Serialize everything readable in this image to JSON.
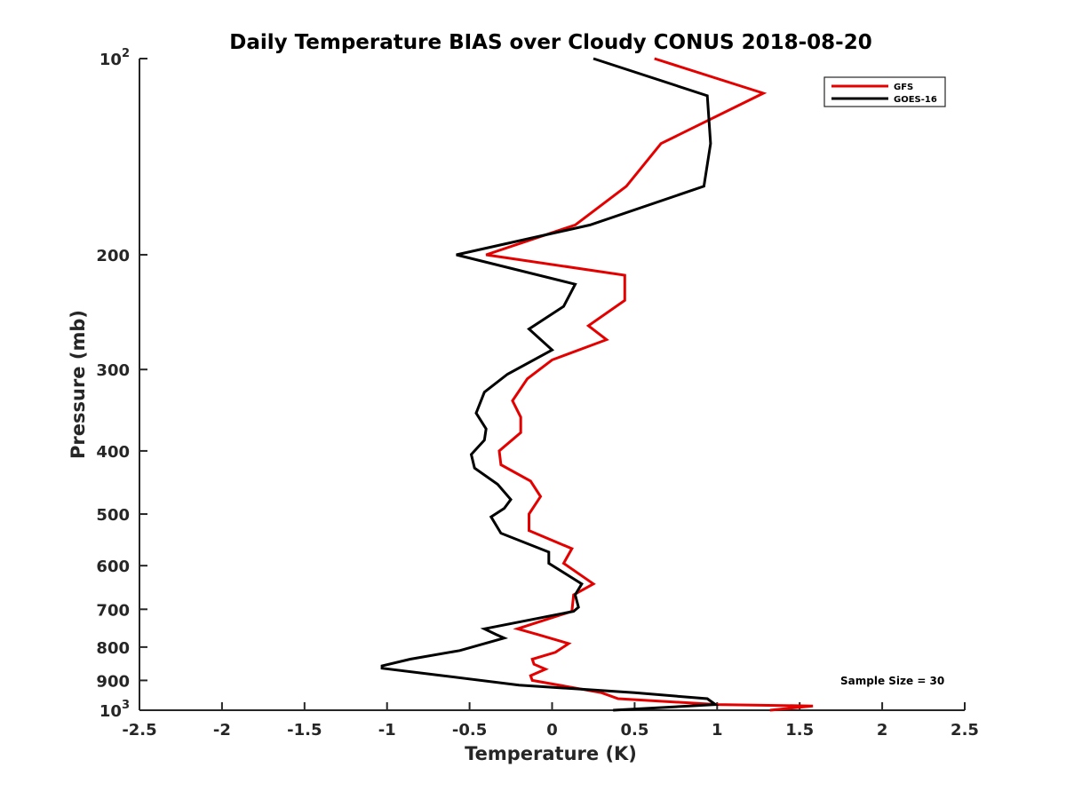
{
  "chart_data": {
    "type": "line",
    "title": "Daily Temperature BIAS over Cloudy CONUS 2018-08-20",
    "xlabel": "Temperature (K)",
    "ylabel": "Pressure (mb)",
    "xlim": [
      -2.5,
      2.5
    ],
    "ylim": [
      100,
      1000
    ],
    "yscale": "log",
    "y_reversed": true,
    "grid": false,
    "legend_position": "top-right",
    "annotation": "Sample Size = 30",
    "xticks": [
      {
        "value": -2.5,
        "label": "-2.5"
      },
      {
        "value": -2,
        "label": "-2"
      },
      {
        "value": -1.5,
        "label": "-1.5"
      },
      {
        "value": -1,
        "label": "-1"
      },
      {
        "value": -0.5,
        "label": "-0.5"
      },
      {
        "value": 0,
        "label": "0"
      },
      {
        "value": 0.5,
        "label": "0.5"
      },
      {
        "value": 1,
        "label": "1"
      },
      {
        "value": 1.5,
        "label": "1.5"
      },
      {
        "value": 2,
        "label": "2"
      },
      {
        "value": 2.5,
        "label": "2.5"
      }
    ],
    "yticks": [
      {
        "value": 100,
        "base": "10",
        "exp": "2"
      },
      {
        "value": 200,
        "base": "200",
        "exp": ""
      },
      {
        "value": 300,
        "base": "300",
        "exp": ""
      },
      {
        "value": 400,
        "base": "400",
        "exp": ""
      },
      {
        "value": 500,
        "base": "500",
        "exp": ""
      },
      {
        "value": 600,
        "base": "600",
        "exp": ""
      },
      {
        "value": 700,
        "base": "700",
        "exp": ""
      },
      {
        "value": 800,
        "base": "800",
        "exp": ""
      },
      {
        "value": 900,
        "base": "900",
        "exp": ""
      },
      {
        "value": 1000,
        "base": "10",
        "exp": "3"
      }
    ],
    "series": [
      {
        "name": "GFS",
        "color": "#e50000",
        "points": [
          {
            "x": 0.62,
            "y": 100
          },
          {
            "x": 1.28,
            "y": 113
          },
          {
            "x": 0.66,
            "y": 135
          },
          {
            "x": 0.45,
            "y": 157
          },
          {
            "x": 0.14,
            "y": 180
          },
          {
            "x": -0.4,
            "y": 200
          },
          {
            "x": 0.44,
            "y": 215
          },
          {
            "x": 0.44,
            "y": 235
          },
          {
            "x": 0.22,
            "y": 257
          },
          {
            "x": 0.33,
            "y": 270
          },
          {
            "x": 0.0,
            "y": 290
          },
          {
            "x": -0.15,
            "y": 310
          },
          {
            "x": -0.24,
            "y": 335
          },
          {
            "x": -0.19,
            "y": 355
          },
          {
            "x": -0.19,
            "y": 375
          },
          {
            "x": -0.32,
            "y": 400
          },
          {
            "x": -0.31,
            "y": 420
          },
          {
            "x": -0.13,
            "y": 445
          },
          {
            "x": -0.07,
            "y": 470
          },
          {
            "x": -0.14,
            "y": 500
          },
          {
            "x": -0.14,
            "y": 530
          },
          {
            "x": 0.12,
            "y": 565
          },
          {
            "x": 0.07,
            "y": 595
          },
          {
            "x": 0.25,
            "y": 640
          },
          {
            "x": 0.13,
            "y": 665
          },
          {
            "x": 0.12,
            "y": 705
          },
          {
            "x": -0.21,
            "y": 750
          },
          {
            "x": -0.09,
            "y": 765
          },
          {
            "x": 0.1,
            "y": 790
          },
          {
            "x": 0.02,
            "y": 815
          },
          {
            "x": -0.12,
            "y": 835
          },
          {
            "x": -0.11,
            "y": 850
          },
          {
            "x": -0.04,
            "y": 865
          },
          {
            "x": -0.13,
            "y": 885
          },
          {
            "x": -0.12,
            "y": 900
          },
          {
            "x": 0.3,
            "y": 940
          },
          {
            "x": 0.4,
            "y": 960
          },
          {
            "x": 1.0,
            "y": 980
          },
          {
            "x": 1.58,
            "y": 985
          },
          {
            "x": 1.32,
            "y": 1000
          }
        ]
      },
      {
        "name": "GOES-16",
        "color": "#000000",
        "points": [
          {
            "x": 0.25,
            "y": 100
          },
          {
            "x": 0.94,
            "y": 114
          },
          {
            "x": 0.96,
            "y": 135
          },
          {
            "x": 0.92,
            "y": 157
          },
          {
            "x": 0.23,
            "y": 180
          },
          {
            "x": -0.58,
            "y": 200
          },
          {
            "x": 0.14,
            "y": 222
          },
          {
            "x": 0.07,
            "y": 240
          },
          {
            "x": -0.14,
            "y": 260
          },
          {
            "x": 0.0,
            "y": 280
          },
          {
            "x": -0.27,
            "y": 305
          },
          {
            "x": -0.41,
            "y": 325
          },
          {
            "x": -0.46,
            "y": 350
          },
          {
            "x": -0.4,
            "y": 370
          },
          {
            "x": -0.41,
            "y": 385
          },
          {
            "x": -0.49,
            "y": 405
          },
          {
            "x": -0.47,
            "y": 425
          },
          {
            "x": -0.33,
            "y": 450
          },
          {
            "x": -0.25,
            "y": 475
          },
          {
            "x": -0.29,
            "y": 490
          },
          {
            "x": -0.37,
            "y": 505
          },
          {
            "x": -0.31,
            "y": 535
          },
          {
            "x": -0.02,
            "y": 572
          },
          {
            "x": -0.02,
            "y": 595
          },
          {
            "x": 0.18,
            "y": 640
          },
          {
            "x": 0.14,
            "y": 665
          },
          {
            "x": 0.16,
            "y": 695
          },
          {
            "x": 0.13,
            "y": 705
          },
          {
            "x": -0.41,
            "y": 750
          },
          {
            "x": -0.34,
            "y": 765
          },
          {
            "x": -0.29,
            "y": 775
          },
          {
            "x": -0.56,
            "y": 810
          },
          {
            "x": -0.86,
            "y": 835
          },
          {
            "x": -1.03,
            "y": 855
          },
          {
            "x": -1.03,
            "y": 862
          },
          {
            "x": -0.2,
            "y": 915
          },
          {
            "x": 0.5,
            "y": 940
          },
          {
            "x": 0.94,
            "y": 960
          },
          {
            "x": 0.99,
            "y": 980
          },
          {
            "x": 0.37,
            "y": 1000
          }
        ]
      }
    ]
  }
}
